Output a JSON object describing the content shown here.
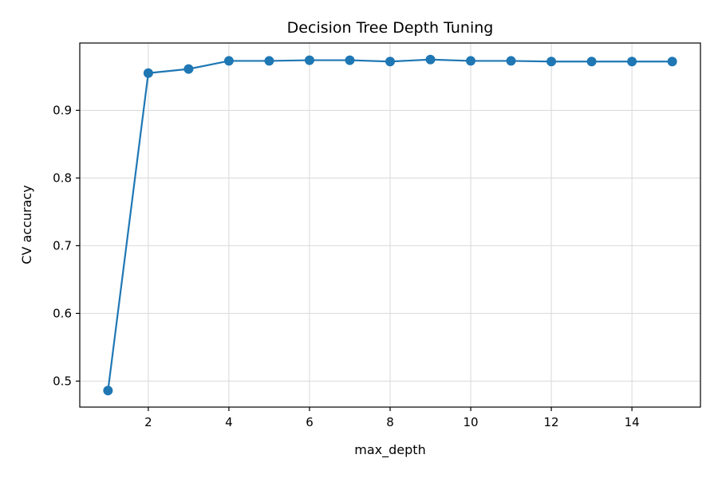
{
  "chart_data": {
    "type": "line",
    "title": "Decision Tree Depth Tuning",
    "xlabel": "max_depth",
    "ylabel": "CV accuracy",
    "x": [
      1,
      2,
      3,
      4,
      5,
      6,
      7,
      8,
      9,
      10,
      11,
      12,
      13,
      14,
      15
    ],
    "series": [
      {
        "values": [
          0.486,
          0.955,
          0.961,
          0.973,
          0.973,
          0.974,
          0.974,
          0.972,
          0.975,
          0.973,
          0.973,
          0.972,
          0.972,
          0.972,
          0.972
        ],
        "color": "#1f77b4",
        "marker": "circle"
      }
    ],
    "xlim": [
      0.3,
      15.7
    ],
    "ylim": [
      0.4616,
      0.9994
    ],
    "xticks": [
      2,
      4,
      6,
      8,
      10,
      12,
      14
    ],
    "xtick_labels": [
      "2",
      "4",
      "6",
      "8",
      "10",
      "12",
      "14"
    ],
    "yticks": [
      0.5,
      0.6,
      0.7,
      0.8,
      0.9
    ],
    "ytick_labels": [
      "0.5",
      "0.6",
      "0.7",
      "0.8",
      "0.9"
    ],
    "grid": true,
    "legend": "none"
  }
}
